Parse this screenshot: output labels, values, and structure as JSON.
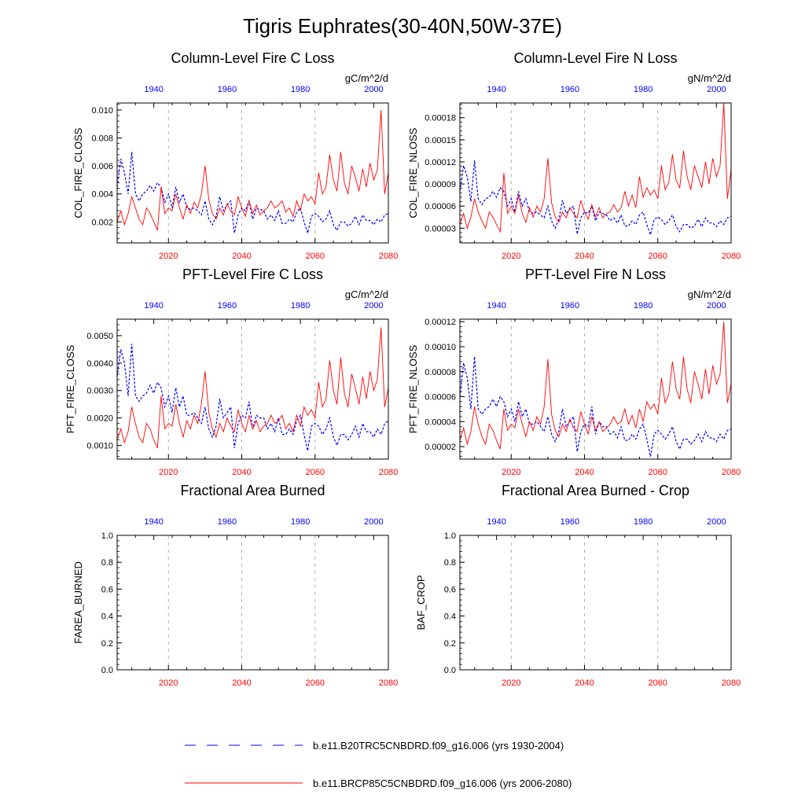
{
  "title": "Tigris Euphrates(30-40N,50W-37E)",
  "colors": {
    "ctrl": "#0000ff",
    "future": "#ff0000",
    "grid": "#b0b0b0"
  },
  "legend": [
    {
      "label": "b.e11.B20TRC5CNBDRD.f09_g16.006 (yrs 1930-2004)",
      "style": "dashed",
      "color": "#0000ff"
    },
    {
      "label": "b.e11.BRCP85C5CNBDRD.f09_g16.006 (yrs 2006-2080)",
      "style": "solid",
      "color": "#ff0000"
    }
  ],
  "axes": {
    "bottom": {
      "range": [
        2006,
        2080
      ],
      "ticks": [
        2020,
        2040,
        2060,
        2080
      ],
      "tick_labels": [
        "2020",
        "2040",
        "2060",
        "2080"
      ]
    },
    "top": {
      "range": [
        1930,
        2004
      ],
      "ticks": [
        1940,
        1960,
        1980,
        2000
      ],
      "tick_labels": [
        "1940",
        "1960",
        "1980",
        "2000"
      ]
    }
  },
  "chart_data": [
    {
      "type": "line",
      "title": "Column-Level Fire C Loss",
      "unit": "gC/m^2/d",
      "ylabel": "COL_FIRE_CLOSS",
      "ylim": [
        0.0005,
        0.0105
      ],
      "yticks": [
        0.002,
        0.004,
        0.006,
        0.008,
        0.01
      ],
      "ytick_labels": [
        "0.002",
        "0.004",
        "0.006",
        "0.008",
        "0.010"
      ],
      "series": [
        {
          "name": "b.e11.B20TRC5CNBDRD.f09_g16.006 (yrs 1930-2004)",
          "values": [
            0.0045,
            0.0065,
            0.0055,
            0.004,
            0.007,
            0.004,
            0.0035,
            0.004,
            0.0042,
            0.0046,
            0.0042,
            0.0048,
            0.0045,
            0.0034,
            0.004,
            0.003,
            0.0045,
            0.0034,
            0.004,
            0.003,
            0.0029,
            0.003,
            0.0028,
            0.0025,
            0.0035,
            0.0022,
            0.0018,
            0.0024,
            0.0038,
            0.0028,
            0.0032,
            0.0035,
            0.0012,
            0.0025,
            0.003,
            0.0028,
            0.0035,
            0.0022,
            0.003,
            0.0029,
            0.0028,
            0.0022,
            0.0025,
            0.0021,
            0.0028,
            0.0019,
            0.0019,
            0.0022,
            0.002,
            0.0027,
            0.003,
            0.002,
            0.0012,
            0.0024,
            0.0026,
            0.0024,
            0.002,
            0.0022,
            0.0028,
            0.0018,
            0.0014,
            0.002,
            0.002,
            0.0017,
            0.0019,
            0.0024,
            0.0018,
            0.0025,
            0.0021,
            0.0021,
            0.0018,
            0.0022,
            0.002,
            0.0025,
            0.0026
          ]
        },
        {
          "name": "b.e11.BRCP85C5CNBDRD.f09_g16.006 (yrs 2006-2080)",
          "values": [
            0.002,
            0.0028,
            0.0018,
            0.0026,
            0.0038,
            0.003,
            0.0022,
            0.0018,
            0.003,
            0.0026,
            0.002,
            0.0014,
            0.0045,
            0.0026,
            0.003,
            0.0028,
            0.004,
            0.003,
            0.0022,
            0.0032,
            0.0026,
            0.0034,
            0.003,
            0.004,
            0.006,
            0.0036,
            0.0026,
            0.0022,
            0.003,
            0.0025,
            0.0033,
            0.0028,
            0.0025,
            0.0038,
            0.003,
            0.0024,
            0.0035,
            0.0026,
            0.0032,
            0.0025,
            0.0028,
            0.003,
            0.0035,
            0.003,
            0.0032,
            0.0035,
            0.0027,
            0.003,
            0.0024,
            0.0035,
            0.0028,
            0.004,
            0.0035,
            0.0038,
            0.0033,
            0.0055,
            0.004,
            0.0045,
            0.0068,
            0.005,
            0.0042,
            0.007,
            0.0048,
            0.004,
            0.006,
            0.0052,
            0.0042,
            0.0058,
            0.0045,
            0.0062,
            0.005,
            0.0057,
            0.01,
            0.004,
            0.0055
          ]
        }
      ]
    },
    {
      "type": "line",
      "title": "Column-Level Fire N Loss",
      "unit": "gN/m^2/d",
      "ylabel": "COL_FIRE_NLOSS",
      "ylim": [
        1e-05,
        0.0002
      ],
      "yticks": [
        3e-05,
        6e-05,
        9e-05,
        0.00012,
        0.00015,
        0.00018
      ],
      "ytick_labels": [
        "0.00003",
        "0.00006",
        "0.00009",
        "0.00012",
        "0.00015",
        "0.00018"
      ],
      "series": [
        {
          "name": "b.e11.B20TRC5CNBDRD.f09_g16.006 (yrs 1930-2004)",
          "values": [
            8e-05,
            0.000115,
            0.0001,
            6.6e-05,
            0.000122,
            7e-05,
            6.2e-05,
            7e-05,
            7.2e-05,
            8e-05,
            7.2e-05,
            8.5e-05,
            8e-05,
            6e-05,
            7e-05,
            5.2e-05,
            8e-05,
            6e-05,
            7e-05,
            5.2e-05,
            5e-05,
            5.2e-05,
            4.8e-05,
            4.4e-05,
            6e-05,
            4e-05,
            3e-05,
            4.2e-05,
            6.8e-05,
            5e-05,
            5.6e-05,
            6e-05,
            2.2e-05,
            4.4e-05,
            5.2e-05,
            5e-05,
            6e-05,
            4e-05,
            5.2e-05,
            5e-05,
            4.8e-05,
            4e-05,
            4.4e-05,
            3.7e-05,
            4.8e-05,
            3.3e-05,
            3.3e-05,
            4e-05,
            3.5e-05,
            4.8e-05,
            5.2e-05,
            3.5e-05,
            2.1e-05,
            4.2e-05,
            4.5e-05,
            4.2e-05,
            3.5e-05,
            4e-05,
            4.8e-05,
            3.2e-05,
            2.5e-05,
            3.5e-05,
            3.5e-05,
            3e-05,
            3.3e-05,
            4.2e-05,
            3.2e-05,
            4.4e-05,
            3.7e-05,
            3.7e-05,
            3.2e-05,
            4e-05,
            3.5e-05,
            4.4e-05,
            4.6e-05
          ]
        },
        {
          "name": "b.e11.BRCP85C5CNBDRD.f09_g16.006 (yrs 2006-2080)",
          "values": [
            3.5e-05,
            5e-05,
            3e-05,
            4.5e-05,
            7e-05,
            5.2e-05,
            4e-05,
            3e-05,
            5.2e-05,
            4.5e-05,
            3.5e-05,
            2.5e-05,
            0.000105,
            5e-05,
            6e-05,
            5e-05,
            7.5e-05,
            5e-05,
            3.8e-05,
            5.8e-05,
            4.5e-05,
            6e-05,
            5.2e-05,
            7e-05,
            0.000125,
            6.5e-05,
            4.5e-05,
            3.8e-05,
            5.2e-05,
            4.4e-05,
            5.8e-05,
            5e-05,
            4.4e-05,
            6.8e-05,
            5.2e-05,
            4.2e-05,
            6.2e-05,
            4.5e-05,
            5.8e-05,
            4.4e-05,
            5e-05,
            5.2e-05,
            6.2e-05,
            5.2e-05,
            5.8e-05,
            8e-05,
            6e-05,
            7.5e-05,
            5.8e-05,
            0.0001,
            7.2e-05,
            8.5e-05,
            7.5e-05,
            8.2e-05,
            7e-05,
            0.000115,
            8.2e-05,
            9.2e-05,
            0.00013,
            9.5e-05,
            8.5e-05,
            0.000135,
            0.0001,
            8.2e-05,
            0.000115,
            0.0001,
            8.5e-05,
            0.00012,
            9e-05,
            0.000125,
            0.0001,
            0.000115,
            0.0002,
            7e-05,
            0.00011
          ]
        }
      ]
    },
    {
      "type": "line",
      "title": "PFT-Level Fire C Loss",
      "unit": "gC/m^2/d",
      "ylabel": "PFT_FIRE_CLOSS",
      "ylim": [
        0.0005,
        0.0056
      ],
      "yticks": [
        0.001,
        0.002,
        0.003,
        0.004,
        0.005
      ],
      "ytick_labels": [
        "0.0010",
        "0.0020",
        "0.0030",
        "0.0040",
        "0.0050"
      ],
      "series": [
        {
          "name": "b.e11.B20TRC5CNBDRD.f09_g16.006 (yrs 1930-2004)",
          "values": [
            0.0035,
            0.0045,
            0.004,
            0.0028,
            0.0047,
            0.0028,
            0.0026,
            0.0028,
            0.0029,
            0.0032,
            0.0029,
            0.0033,
            0.0031,
            0.0024,
            0.0028,
            0.0022,
            0.0031,
            0.0024,
            0.0028,
            0.0021,
            0.0021,
            0.0022,
            0.002,
            0.0018,
            0.0024,
            0.0016,
            0.0013,
            0.0017,
            0.0027,
            0.002,
            0.0022,
            0.0024,
            0.0009,
            0.0018,
            0.0021,
            0.002,
            0.0026,
            0.0016,
            0.0021,
            0.002,
            0.002,
            0.0016,
            0.0018,
            0.0015,
            0.002,
            0.0014,
            0.0014,
            0.0016,
            0.0014,
            0.0019,
            0.0021,
            0.0014,
            0.0008,
            0.0017,
            0.0018,
            0.0017,
            0.0014,
            0.0016,
            0.002,
            0.0013,
            0.001,
            0.0014,
            0.0014,
            0.0012,
            0.0014,
            0.0017,
            0.0013,
            0.0018,
            0.0015,
            0.0015,
            0.0013,
            0.0016,
            0.0014,
            0.0018,
            0.0019
          ]
        },
        {
          "name": "b.e11.BRCP85C5CNBDRD.f09_g16.006 (yrs 2006-2080)",
          "values": [
            0.0012,
            0.0016,
            0.0011,
            0.0015,
            0.0024,
            0.0018,
            0.0013,
            0.0011,
            0.0018,
            0.0016,
            0.0012,
            0.0009,
            0.0028,
            0.0016,
            0.0018,
            0.0017,
            0.0025,
            0.0018,
            0.0013,
            0.0019,
            0.0016,
            0.0021,
            0.0018,
            0.0025,
            0.0037,
            0.0022,
            0.0016,
            0.0013,
            0.0018,
            0.0015,
            0.002,
            0.0017,
            0.0015,
            0.0023,
            0.0018,
            0.0015,
            0.0021,
            0.0016,
            0.0019,
            0.0015,
            0.0017,
            0.0018,
            0.0021,
            0.0018,
            0.0019,
            0.0021,
            0.0016,
            0.0018,
            0.0015,
            0.0021,
            0.0017,
            0.0024,
            0.0021,
            0.0023,
            0.002,
            0.0033,
            0.0024,
            0.0027,
            0.0041,
            0.003,
            0.0025,
            0.0042,
            0.0029,
            0.0024,
            0.0036,
            0.0031,
            0.0025,
            0.0035,
            0.0027,
            0.0037,
            0.003,
            0.0034,
            0.0053,
            0.0024,
            0.0031
          ]
        }
      ]
    },
    {
      "type": "line",
      "title": "PFT-Level Fire N Loss",
      "unit": "gN/m^2/d",
      "ylabel": "PFT_FIRE_NLOSS",
      "ylim": [
        1e-05,
        0.000122
      ],
      "yticks": [
        2e-05,
        4e-05,
        6e-05,
        8e-05,
        0.0001,
        0.00012
      ],
      "ytick_labels": [
        "0.00002",
        "0.00004",
        "0.00006",
        "0.00008",
        "0.00010",
        "0.00012"
      ],
      "series": [
        {
          "name": "b.e11.B20TRC5CNBDRD.f09_g16.006 (yrs 1930-2004)",
          "values": [
            6e-05,
            8.7e-05,
            7.5e-05,
            5e-05,
            9.2e-05,
            5e-05,
            4.6e-05,
            5e-05,
            5.2e-05,
            5.8e-05,
            5.2e-05,
            6e-05,
            5.6e-05,
            4.4e-05,
            5e-05,
            4e-05,
            5.6e-05,
            4.4e-05,
            5e-05,
            3.8e-05,
            3.8e-05,
            4e-05,
            3.6e-05,
            3.2e-05,
            4.4e-05,
            3e-05,
            2.4e-05,
            3.2e-05,
            5e-05,
            3.6e-05,
            4e-05,
            4.4e-05,
            1.6e-05,
            3.2e-05,
            3.8e-05,
            3.6e-05,
            5.2e-05,
            3e-05,
            4e-05,
            3.6e-05,
            3.6e-05,
            3e-05,
            3.2e-05,
            2.7e-05,
            3.6e-05,
            2.5e-05,
            2.5e-05,
            3e-05,
            2.6e-05,
            3.4e-05,
            3.8e-05,
            2.6e-05,
            1.2e-05,
            3e-05,
            3.3e-05,
            3e-05,
            2.6e-05,
            3e-05,
            3.6e-05,
            2.4e-05,
            1.8e-05,
            2.6e-05,
            2.6e-05,
            2.2e-05,
            2.5e-05,
            3e-05,
            2.4e-05,
            3.2e-05,
            2.7e-05,
            2.7e-05,
            2.4e-05,
            3e-05,
            2.6e-05,
            3.3e-05,
            3.4e-05
          ]
        },
        {
          "name": "b.e11.BRCP85C5CNBDRD.f09_g16.006 (yrs 2006-2080)",
          "values": [
            2.5e-05,
            3.5e-05,
            2.2e-05,
            3.2e-05,
            5.2e-05,
            3.8e-05,
            2.8e-05,
            2.2e-05,
            3.8e-05,
            3.3e-05,
            2.5e-05,
            1.8e-05,
            5e-05,
            3.3e-05,
            3.8e-05,
            3.5e-05,
            5e-05,
            3.8e-05,
            2.8e-05,
            4e-05,
            3.3e-05,
            4.4e-05,
            3.8e-05,
            5.2e-05,
            9e-05,
            4.6e-05,
            3.3e-05,
            2.8e-05,
            3.8e-05,
            3.2e-05,
            4.2e-05,
            3.5e-05,
            3.2e-05,
            4.8e-05,
            3.8e-05,
            3e-05,
            4.4e-05,
            3.3e-05,
            4e-05,
            3.2e-05,
            3.5e-05,
            3.8e-05,
            4.4e-05,
            3.8e-05,
            4e-05,
            5e-05,
            3.8e-05,
            4.5e-05,
            3.5e-05,
            5e-05,
            4e-05,
            5.6e-05,
            5e-05,
            5.4e-05,
            4.6e-05,
            7.5e-05,
            5.5e-05,
            6.2e-05,
            8.8e-05,
            6.6e-05,
            5.8e-05,
            9.2e-05,
            6.6e-05,
            5.5e-05,
            8e-05,
            7e-05,
            5.8e-05,
            8.2e-05,
            6.2e-05,
            8.5e-05,
            7e-05,
            7.8e-05,
            0.00012,
            5.5e-05,
            7e-05
          ]
        }
      ]
    },
    {
      "type": "line",
      "title": "Fractional Area Burned",
      "unit": "",
      "ylabel": "FAREA_BURNED",
      "ylim": [
        0.0,
        1.0
      ],
      "yticks": [
        0.0,
        0.2,
        0.4,
        0.6,
        0.8,
        1.0
      ],
      "ytick_labels": [
        "0.0",
        "0.2",
        "0.4",
        "0.6",
        "0.8",
        "1.0"
      ],
      "series": []
    },
    {
      "type": "line",
      "title": "Fractional Area Burned - Crop",
      "unit": "",
      "ylabel": "BAF_CROP",
      "ylim": [
        0.0,
        1.0
      ],
      "yticks": [
        0.0,
        0.2,
        0.4,
        0.6,
        0.8,
        1.0
      ],
      "ytick_labels": [
        "0.0",
        "0.2",
        "0.4",
        "0.6",
        "0.8",
        "1.0"
      ],
      "series": []
    }
  ]
}
